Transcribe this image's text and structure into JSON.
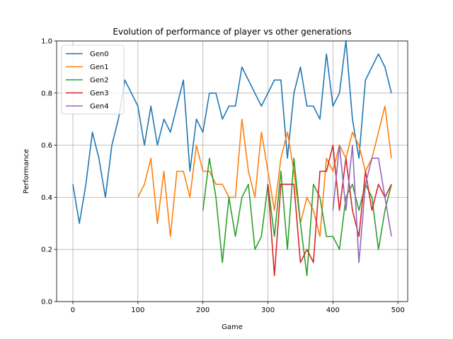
{
  "chart_data": {
    "type": "line",
    "title": "Evolution of performance of player vs other generations",
    "xlabel": "Game",
    "ylabel": "Performance",
    "xlim": [
      -25,
      515
    ],
    "ylim": [
      0.0,
      1.0
    ],
    "xticks": [
      0,
      100,
      200,
      300,
      400,
      500
    ],
    "yticks": [
      0.0,
      0.2,
      0.4,
      0.6,
      0.8,
      1.0
    ],
    "xtick_labels": [
      "0",
      "100",
      "200",
      "300",
      "400",
      "500"
    ],
    "ytick_labels": [
      "0.0",
      "0.2",
      "0.4",
      "0.6",
      "0.8",
      "1.0"
    ],
    "grid": true,
    "legend_position": "top-left",
    "series": [
      {
        "name": "Gen0",
        "color": "#1f77b4",
        "x": [
          0,
          10,
          20,
          30,
          40,
          50,
          60,
          70,
          80,
          90,
          100,
          110,
          120,
          130,
          140,
          150,
          160,
          170,
          180,
          190,
          200,
          210,
          220,
          230,
          240,
          250,
          260,
          270,
          280,
          290,
          300,
          310,
          320,
          330,
          340,
          350,
          360,
          370,
          380,
          390,
          400,
          410,
          420,
          430,
          440,
          450,
          460,
          470,
          480,
          490
        ],
        "y": [
          0.45,
          0.3,
          0.45,
          0.65,
          0.55,
          0.4,
          0.6,
          0.7,
          0.85,
          0.8,
          0.75,
          0.6,
          0.75,
          0.6,
          0.7,
          0.65,
          0.75,
          0.85,
          0.5,
          0.7,
          0.65,
          0.8,
          0.8,
          0.7,
          0.75,
          0.75,
          0.9,
          0.85,
          0.8,
          0.75,
          0.8,
          0.85,
          0.85,
          0.55,
          0.8,
          0.9,
          0.75,
          0.75,
          0.7,
          0.95,
          0.75,
          0.8,
          1.0,
          0.7,
          0.55,
          0.85,
          0.9,
          0.95,
          0.9,
          0.8
        ]
      },
      {
        "name": "Gen1",
        "color": "#ff7f0e",
        "x": [
          100,
          110,
          120,
          130,
          140,
          150,
          160,
          170,
          180,
          190,
          200,
          210,
          220,
          230,
          240,
          250,
          260,
          270,
          280,
          290,
          300,
          310,
          320,
          330,
          340,
          350,
          360,
          370,
          380,
          390,
          400,
          410,
          420,
          430,
          440,
          450,
          460,
          470,
          480,
          490
        ],
        "y": [
          0.4,
          0.45,
          0.55,
          0.3,
          0.5,
          0.25,
          0.5,
          0.5,
          0.4,
          0.6,
          0.5,
          0.5,
          0.45,
          0.45,
          0.4,
          0.4,
          0.7,
          0.5,
          0.4,
          0.65,
          0.5,
          0.35,
          0.55,
          0.65,
          0.5,
          0.3,
          0.4,
          0.35,
          0.25,
          0.55,
          0.5,
          0.6,
          0.55,
          0.65,
          0.6,
          0.5,
          0.55,
          0.65,
          0.75,
          0.55
        ]
      },
      {
        "name": "Gen2",
        "color": "#2ca02c",
        "x": [
          200,
          210,
          220,
          230,
          240,
          250,
          260,
          270,
          280,
          290,
          300,
          310,
          320,
          330,
          340,
          350,
          360,
          370,
          380,
          390,
          400,
          410,
          420,
          430,
          440,
          450,
          460,
          470,
          480,
          490
        ],
        "y": [
          0.35,
          0.55,
          0.4,
          0.15,
          0.4,
          0.25,
          0.4,
          0.45,
          0.2,
          0.25,
          0.45,
          0.25,
          0.5,
          0.2,
          0.55,
          0.3,
          0.1,
          0.45,
          0.4,
          0.25,
          0.25,
          0.2,
          0.4,
          0.45,
          0.35,
          0.45,
          0.4,
          0.2,
          0.35,
          0.45
        ]
      },
      {
        "name": "Gen3",
        "color": "#d62728",
        "x": [
          300,
          310,
          320,
          330,
          340,
          350,
          360,
          370,
          380,
          390,
          400,
          410,
          420,
          430,
          440,
          450,
          460,
          470,
          480,
          490
        ],
        "y": [
          0.45,
          0.1,
          0.45,
          0.45,
          0.45,
          0.15,
          0.2,
          0.15,
          0.5,
          0.5,
          0.6,
          0.35,
          0.55,
          0.35,
          0.25,
          0.5,
          0.35,
          0.45,
          0.4,
          0.45
        ]
      },
      {
        "name": "Gen4",
        "color": "#9467bd",
        "x": [
          400,
          410,
          420,
          430,
          440,
          450,
          460,
          470,
          480,
          490
        ],
        "y": [
          0.35,
          0.6,
          0.35,
          0.6,
          0.15,
          0.45,
          0.55,
          0.55,
          0.4,
          0.25
        ]
      }
    ]
  }
}
